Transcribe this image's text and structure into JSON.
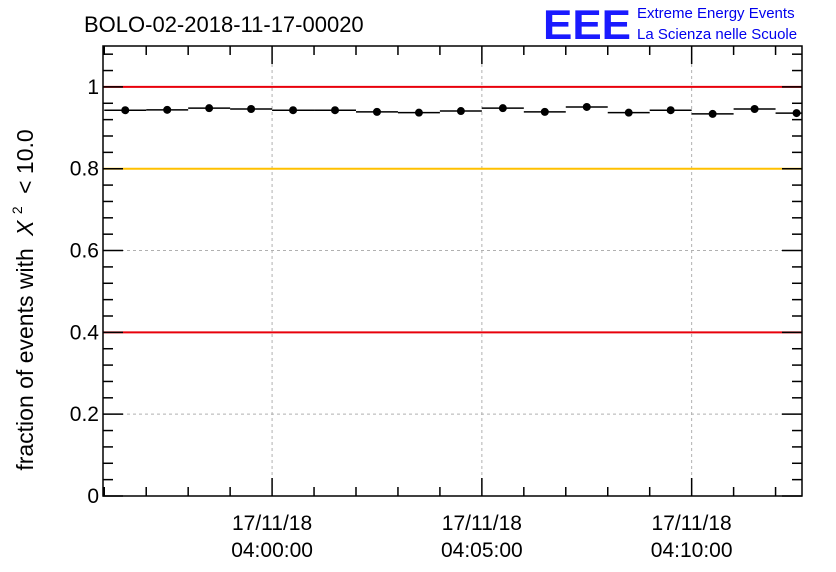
{
  "chart_data": {
    "type": "scatter",
    "title": "BOLO-02-2018-11-17-00020",
    "ylabel": "fraction of events with",
    "ylabel_symbol": "X",
    "ylabel_sup": "2",
    "ylabel_tail": "< 10.0",
    "ylim": [
      0,
      1.1
    ],
    "yticks": [
      {
        "v": 0,
        "label": "0"
      },
      {
        "v": 0.2,
        "label": "0.2"
      },
      {
        "v": 0.4,
        "label": "0.4"
      },
      {
        "v": 0.6,
        "label": "0.6"
      },
      {
        "v": 0.8,
        "label": "0.8"
      },
      {
        "v": 1,
        "label": "1"
      }
    ],
    "xlim_minutes": [
      -4.03,
      12.63
    ],
    "xticks": [
      {
        "m": 0,
        "date": "17/11/18",
        "time": "04:00:00"
      },
      {
        "m": 5,
        "date": "17/11/18",
        "time": "04:05:00"
      },
      {
        "m": 10,
        "date": "17/11/18",
        "time": "04:10:00"
      }
    ],
    "bin_width_minutes": 1.0,
    "x": [
      -3.5,
      -2.5,
      -1.5,
      -0.5,
      0.5,
      1.5,
      2.5,
      3.5,
      4.5,
      5.5,
      6.5,
      7.5,
      8.5,
      9.5,
      10.5,
      11.5,
      12.5
    ],
    "values": [
      0.943,
      0.944,
      0.948,
      0.946,
      0.943,
      0.943,
      0.939,
      0.937,
      0.941,
      0.948,
      0.939,
      0.951,
      0.937,
      0.943,
      0.934,
      0.946,
      0.936
    ],
    "reference_lines": [
      {
        "y": 1.0,
        "color": "#e8000b"
      },
      {
        "y": 0.8,
        "color": "#ffc000"
      },
      {
        "y": 0.4,
        "color": "#e8000b"
      }
    ],
    "grid": true
  },
  "logo": {
    "mark": "EEE",
    "line1": "Extreme Energy Events",
    "line2": "La Scienza nelle Scuole",
    "color": "#0000ee"
  }
}
